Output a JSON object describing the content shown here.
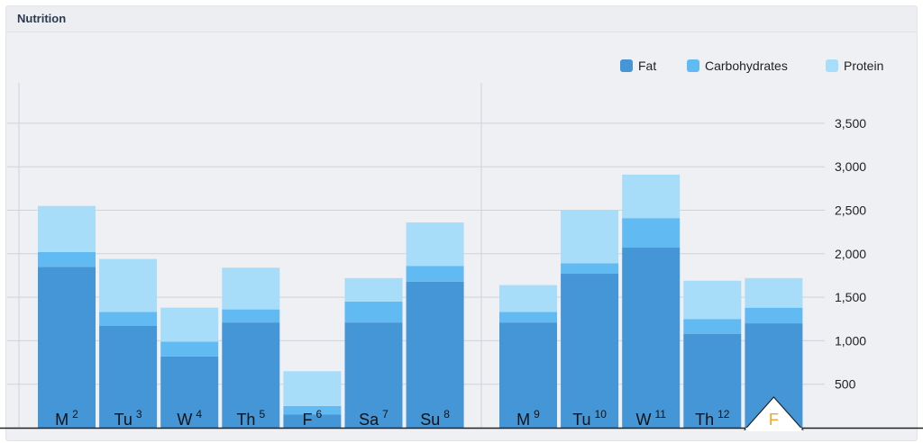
{
  "panel": {
    "title": "Nutrition"
  },
  "colors": {
    "fat": "#4596d7",
    "carbohydrates": "#62baf2",
    "protein": "#a8ddfa",
    "highlight": "#f0a626"
  },
  "chart_data": {
    "type": "bar",
    "stacked": true,
    "categories": [
      "M 2",
      "Tu 3",
      "W 4",
      "Th 5",
      "F 6",
      "Sa 7",
      "Su 8",
      "M 9",
      "Tu 10",
      "W 11",
      "Th 12",
      "F"
    ],
    "category_labels": [
      {
        "day": "M",
        "date": "2"
      },
      {
        "day": "Tu",
        "date": "3"
      },
      {
        "day": "W",
        "date": "4"
      },
      {
        "day": "Th",
        "date": "5"
      },
      {
        "day": "F",
        "date": "6"
      },
      {
        "day": "Sa",
        "date": "7"
      },
      {
        "day": "Su",
        "date": "8"
      },
      {
        "day": "M",
        "date": "9"
      },
      {
        "day": "Tu",
        "date": "10"
      },
      {
        "day": "W",
        "date": "11"
      },
      {
        "day": "Th",
        "date": "12"
      },
      {
        "day": "F",
        "date": ""
      }
    ],
    "series": [
      {
        "name": "Fat",
        "values": [
          1850,
          1170,
          820,
          1210,
          150,
          1210,
          1680,
          1210,
          1770,
          2070,
          1080,
          1200
        ]
      },
      {
        "name": "Carbohydrates",
        "values": [
          170,
          160,
          170,
          150,
          100,
          240,
          180,
          120,
          120,
          340,
          170,
          180
        ]
      },
      {
        "name": "Protein",
        "values": [
          530,
          610,
          390,
          480,
          400,
          270,
          500,
          310,
          610,
          500,
          440,
          340
        ]
      }
    ],
    "title": "",
    "xlabel": "",
    "ylabel": "",
    "ylim": [
      0,
      3500
    ],
    "yticks": [
      "500",
      "1,000",
      "1,500",
      "2,000",
      "2,500",
      "3,000",
      "3,500"
    ],
    "ytick_values": [
      500,
      1000,
      1500,
      2000,
      2500,
      3000,
      3500
    ],
    "legend": "top-right",
    "grid": true,
    "current_category": "F"
  }
}
